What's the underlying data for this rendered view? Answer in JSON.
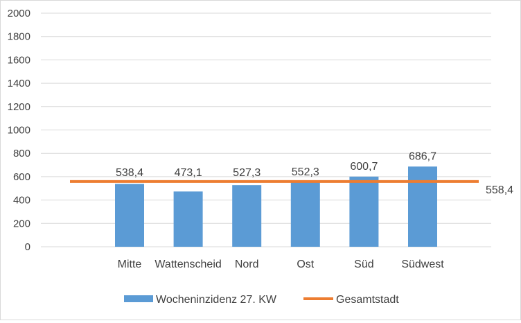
{
  "chart_data": {
    "type": "bar",
    "title": "",
    "xlabel": "",
    "ylabel": "",
    "categories": [
      "Mitte",
      "Wattenscheid",
      "Nord",
      "Ost",
      "Süd",
      "Südwest"
    ],
    "ylim": [
      0,
      2000
    ],
    "yticks": [
      0,
      200,
      400,
      600,
      800,
      1000,
      1200,
      1400,
      1600,
      1800,
      2000
    ],
    "ytick_labels": [
      "0",
      "200",
      "400",
      "600",
      "800",
      "1000",
      "1200",
      "1400",
      "1600",
      "1800",
      "2000"
    ],
    "grid": true,
    "legend_position": "bottom",
    "series": [
      {
        "name": "Wocheninzidenz 27. KW",
        "type": "bar",
        "color": "#5b9bd5",
        "values": [
          538.4,
          473.1,
          527.3,
          552.3,
          600.7,
          686.7
        ],
        "data_labels": [
          "538,4",
          "473,1",
          "527,3",
          "552,3",
          "600,7",
          "686,7"
        ]
      },
      {
        "name": "Gesamtstadt",
        "type": "line",
        "color": "#ed7d31",
        "value": 558.4,
        "data_label": "558,4"
      }
    ]
  }
}
